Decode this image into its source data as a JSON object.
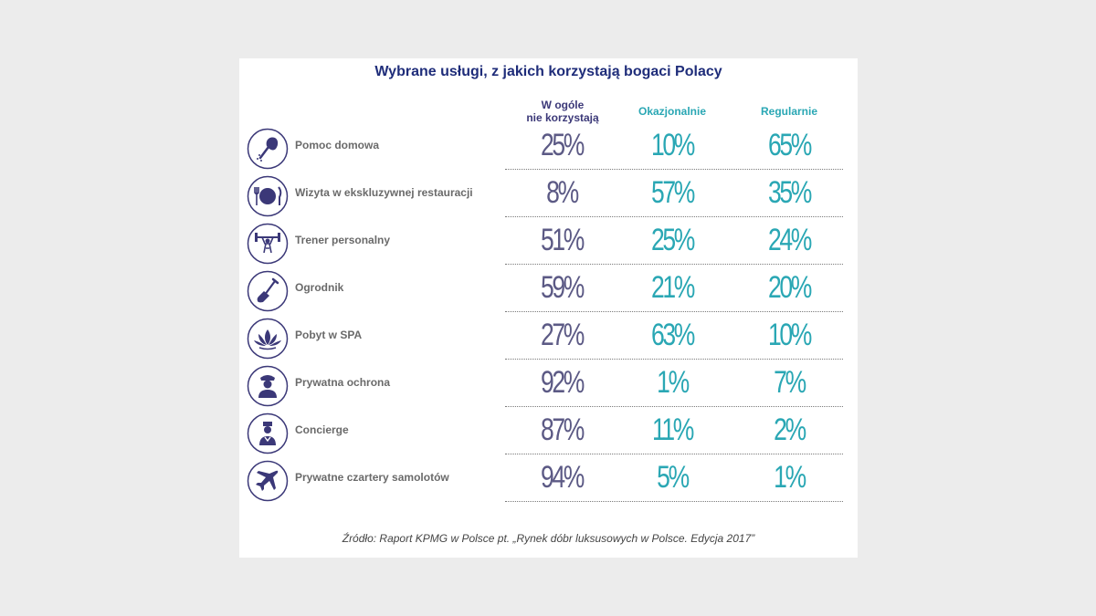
{
  "chart_data": {
    "type": "table",
    "title": "Wybrane usługi, z jakich korzystają bogaci Polacy",
    "columns": [
      "W ogóle nie korzystają",
      "Okazjonalnie",
      "Regularnie"
    ],
    "column_lines": [
      [
        "W ogóle",
        "nie korzystają"
      ],
      [
        "Okazjonalnie"
      ],
      [
        "Regularnie"
      ]
    ],
    "rows": [
      {
        "label": "Pomoc domowa",
        "icon": "feather-duster-icon",
        "values": [
          "25%",
          "10%",
          "65%"
        ]
      },
      {
        "label": "Wizyta w ekskluzywnej restauracji",
        "icon": "plate-cutlery-icon",
        "values": [
          "8%",
          "57%",
          "35%"
        ]
      },
      {
        "label": "Trener personalny",
        "icon": "weightlifter-icon",
        "values": [
          "51%",
          "25%",
          "24%"
        ]
      },
      {
        "label": "Ogrodnik",
        "icon": "shovel-icon",
        "values": [
          "59%",
          "21%",
          "20%"
        ]
      },
      {
        "label": "Pobyt w SPA",
        "icon": "lotus-icon",
        "values": [
          "27%",
          "63%",
          "10%"
        ]
      },
      {
        "label": "Prywatna ochrona",
        "icon": "security-guard-icon",
        "values": [
          "92%",
          "1%",
          "7%"
        ]
      },
      {
        "label": "Concierge",
        "icon": "concierge-icon",
        "values": [
          "87%",
          "11%",
          "2%"
        ]
      },
      {
        "label": "Prywatne czartery samolotów",
        "icon": "airplane-icon",
        "values": [
          "94%",
          "5%",
          "1%"
        ]
      }
    ],
    "source": "Źródło: Raport KPMG w Polsce pt. „Rynek dóbr luksusowych w Polsce. Edycja 2017”"
  },
  "colors": {
    "title": "#1f2d7a",
    "icon": "#3b3878",
    "never": "#5c5a85",
    "accent": "#2aa7b4",
    "label": "#6a6a6a"
  }
}
